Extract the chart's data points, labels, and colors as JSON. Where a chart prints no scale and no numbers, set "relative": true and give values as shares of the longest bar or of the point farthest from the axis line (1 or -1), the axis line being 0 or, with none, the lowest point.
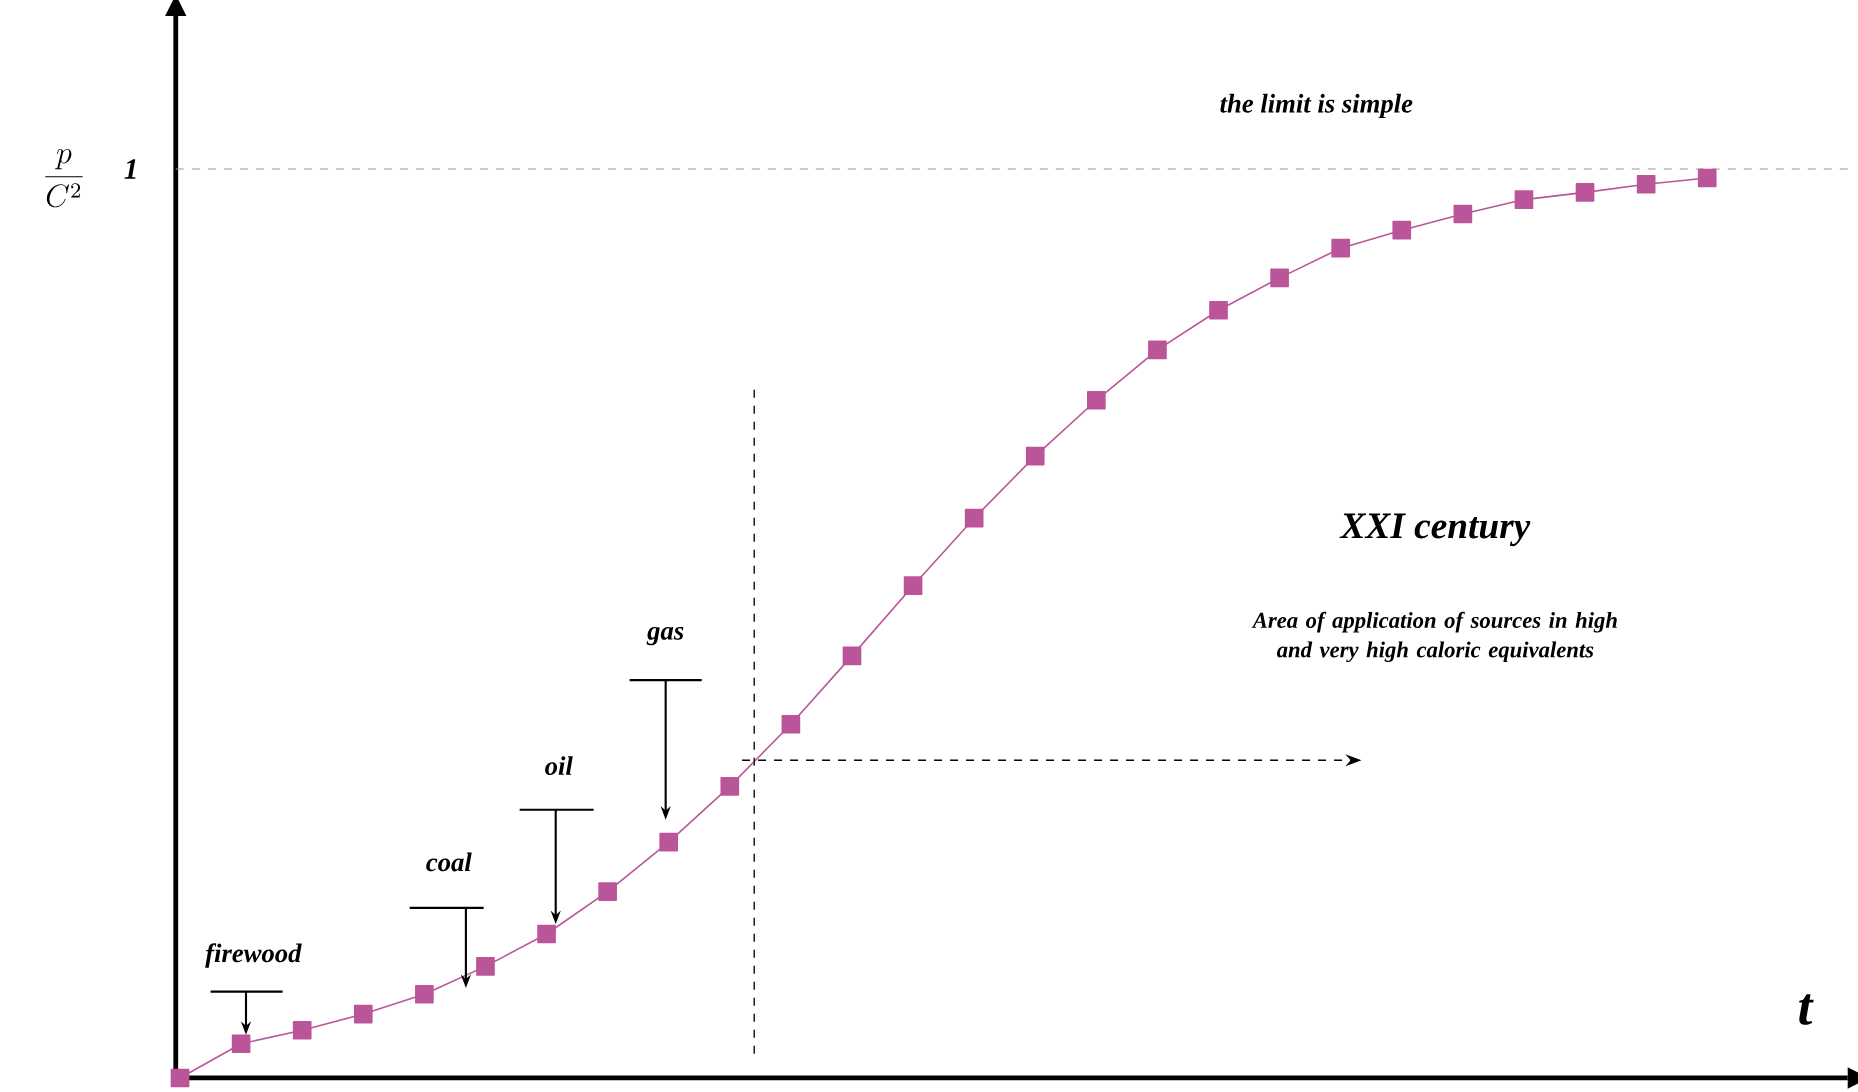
{
  "chart_data": {
    "type": "line",
    "relative": true,
    "xlabel": "t",
    "ylabel": "\\frac{p}{C^{2}}",
    "marker": "square",
    "line_style": "solid",
    "categories": [
      null,
      null,
      null,
      null,
      null,
      null,
      null,
      null,
      null,
      null,
      null,
      null,
      null,
      null,
      null,
      null,
      null,
      null,
      null,
      null,
      null,
      null,
      null,
      null,
      null,
      null
    ],
    "series": [
      {
        "color": "#bb5599",
        "values": [
          0,
          0.038,
          0.053,
          0.071,
          0.093,
          0.124,
          0.16,
          0.207,
          0.262,
          0.324,
          0.393,
          0.469,
          0.547,
          0.622,
          0.691,
          0.753,
          0.809,
          0.853,
          0.889,
          0.922,
          0.942,
          0.96,
          0.976,
          0.984,
          0.993,
          1
        ]
      }
    ],
    "ref_lines": [
      {
        "axis": "y",
        "value": 1.01,
        "label": "1",
        "color": "#999999",
        "line_style": "dashed"
      }
    ],
    "annotations": [
      "the limit is simple",
      "XXI century",
      "Area of application of sources  in high and very high caloric equivalents",
      "firewood",
      "coal",
      "oil",
      "gas"
    ]
  }
}
